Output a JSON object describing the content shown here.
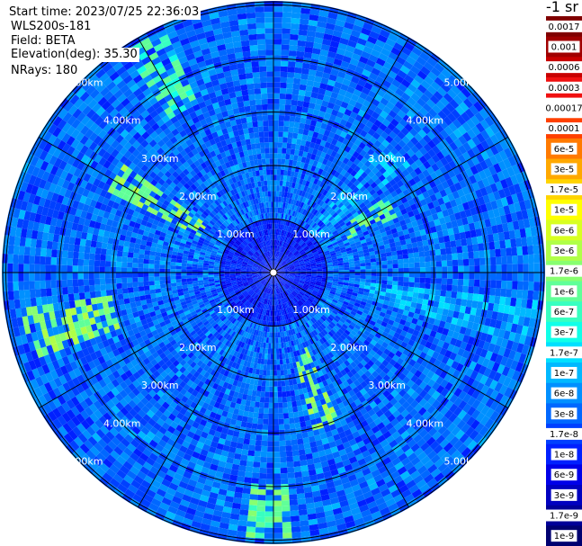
{
  "info": {
    "start_time": "Start time: 2023/07/25 22:36:03",
    "instrument": "WLS200s-181",
    "field": "Field: BETA",
    "elevation": "Elevation(deg): 35.30",
    "nrays": "NRays: 180"
  },
  "colorbar": {
    "title": "-1 sr",
    "ticks": [
      "0.0017",
      "0.001",
      "0.0006",
      "0.0003",
      "0.00017",
      "0.0001",
      "6e-5",
      "3e-5",
      "1.7e-5",
      "1e-5",
      "6e-6",
      "3e-6",
      "1.7e-6",
      "1e-6",
      "6e-7",
      "3e-7",
      "1.7e-7",
      "1e-7",
      "6e-8",
      "3e-8",
      "1.7e-8",
      "1e-8",
      "6e-9",
      "3e-9",
      "1.7e-9",
      "1e-9"
    ],
    "colors": [
      "#800000",
      "#a00000",
      "#c80000",
      "#f01010",
      "#ffffff",
      "#ff4000",
      "#ff7a00",
      "#ffa800",
      "#ffd400",
      "#ffff00",
      "#d8ff20",
      "#b0ff48",
      "#88ff70",
      "#60ff98",
      "#38ffc0",
      "#10ffe8",
      "#00e0ff",
      "#00b8ff",
      "#0090ff",
      "#0068ff",
      "#0040ff",
      "#0020ff",
      "#0000e8",
      "#0000c0",
      "#000098",
      "#000070"
    ]
  },
  "chart_data": {
    "type": "heatmap",
    "projection": "polar-ppi",
    "field": "BETA",
    "units": "-1 sr",
    "rays": 180,
    "range_rings_km": [
      1.0,
      2.0,
      3.0,
      4.0,
      5.0
    ],
    "ring_labels": [
      "1.00km",
      "2.00km",
      "3.00km",
      "4.00km",
      "5.00km"
    ],
    "max_range_km": 5.0,
    "spokes_deg": [
      0,
      30,
      60,
      90,
      120,
      150,
      180,
      210,
      240,
      270,
      300,
      330
    ],
    "color_scale": "log",
    "color_range": [
      1e-09,
      0.0017
    ],
    "background_beta": 3e-08,
    "inner_region_beta": 1e-08,
    "features": [
      {
        "azimuth_deg": 45,
        "range_km": [
          1.0,
          3.2
        ],
        "beta": 1e-07
      },
      {
        "azimuth_deg": 100,
        "range_km": [
          1.5,
          5.0
        ],
        "beta": 1e-07
      },
      {
        "azimuth_deg": 255,
        "range_km": [
          3.0,
          4.8
        ],
        "beta": 1.7e-06
      },
      {
        "azimuth_deg": 300,
        "range_km": [
          1.5,
          3.5
        ],
        "beta": 1.7e-06
      },
      {
        "azimuth_deg": 330,
        "range_km": [
          3.5,
          5.0
        ],
        "beta": 6e-07
      },
      {
        "azimuth_deg": 160,
        "range_km": [
          1.5,
          3.0
        ],
        "beta": 1.7e-06
      },
      {
        "azimuth_deg": 180,
        "range_km": [
          4.0,
          5.0
        ],
        "beta": 1e-06
      },
      {
        "azimuth_deg": 60,
        "range_km": [
          1.5,
          2.5
        ],
        "beta": 1e-06
      }
    ]
  }
}
